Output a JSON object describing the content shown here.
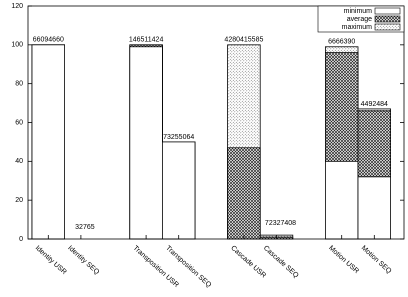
{
  "chart_data": {
    "type": "overlay-bar",
    "categories": [
      "Identity USR",
      "Identity SEQ",
      "Transposition USR",
      "Transposition SEQ",
      "Cascade USR",
      "Cascade SEQ",
      "Motion USR",
      "Motion SEQ"
    ],
    "series": [
      {
        "name": "maximum",
        "values": [
          100,
          0,
          100,
          50,
          100,
          2,
          99,
          67
        ]
      },
      {
        "name": "average",
        "values": [
          100,
          0,
          100,
          50,
          47,
          1,
          96,
          66
        ]
      },
      {
        "name": "minimum",
        "values": [
          100,
          0,
          99,
          50,
          0,
          0,
          40,
          32
        ]
      }
    ],
    "bar_labels": [
      66094660,
      32765,
      146511424,
      73255064,
      4280415585,
      72327408,
      6666390,
      4492484
    ],
    "legend_order": [
      "minimum",
      "average",
      "maximum"
    ],
    "ylim": [
      0,
      120
    ],
    "yticks": [
      0,
      20,
      40,
      60,
      80,
      100,
      120
    ],
    "legend": "top-right"
  }
}
